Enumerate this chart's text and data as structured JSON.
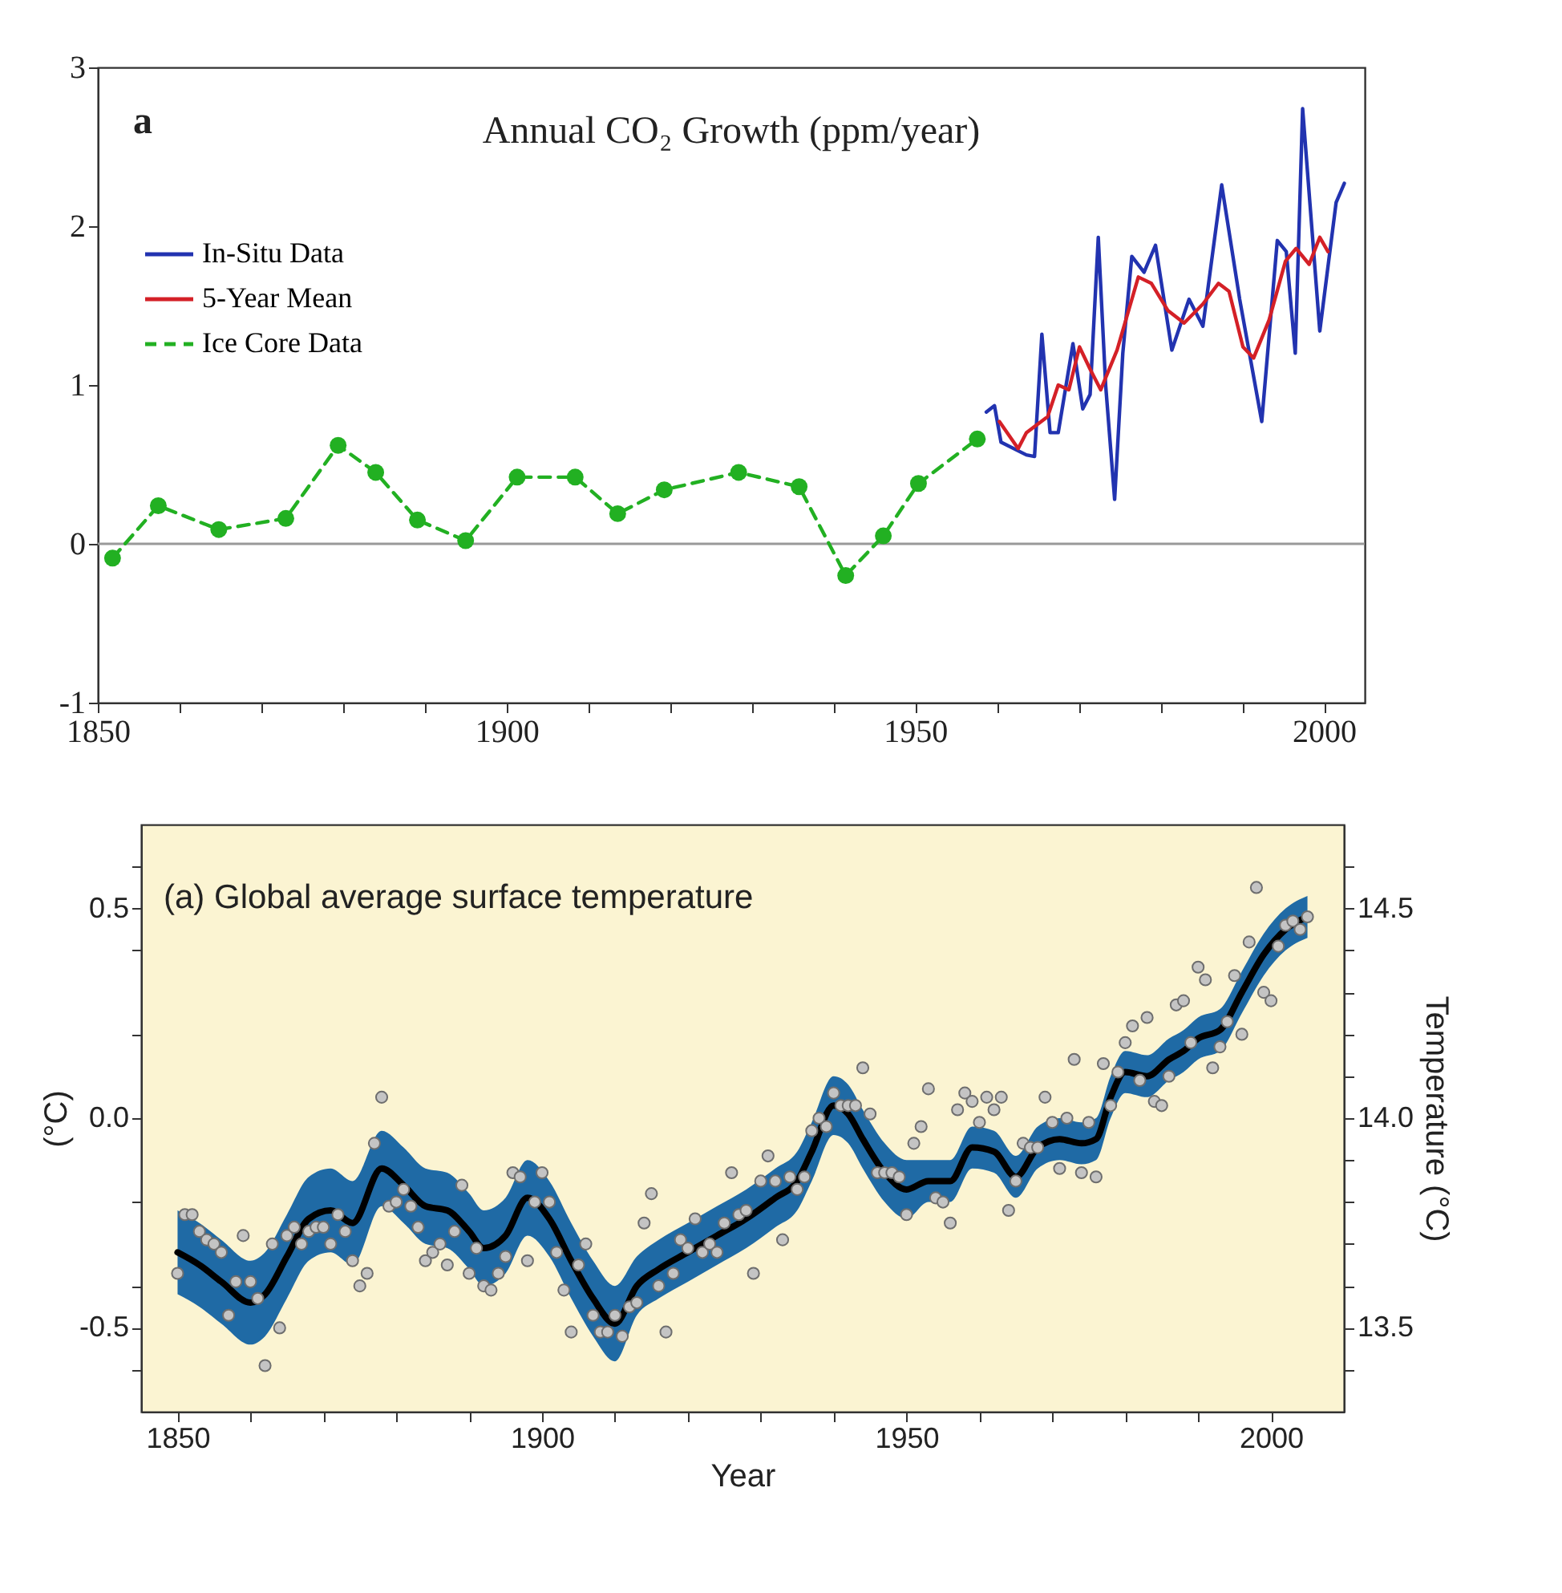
{
  "chart_data": [
    {
      "type": "line",
      "title": "Annual CO₂ Growth (ppm/year)",
      "annotations": [
        "a"
      ],
      "legend": "top left",
      "xlim": [
        1850,
        2005
      ],
      "xticks": [
        1850,
        {
          "value": 1860,
          "label": null
        },
        {
          "value": 1870,
          "label": null
        },
        {
          "value": 1880,
          "label": null
        },
        {
          "value": 1890,
          "label": null
        },
        1900,
        {
          "value": 1910,
          "label": null
        },
        {
          "value": 1920,
          "label": null
        },
        {
          "value": 1930,
          "label": null
        },
        {
          "value": 1940,
          "label": null
        },
        1950,
        {
          "value": 1960,
          "label": null
        },
        {
          "value": 1970,
          "label": null
        },
        {
          "value": 1980,
          "label": null
        },
        {
          "value": 1990,
          "label": null
        },
        2000
      ],
      "ylim": [
        -1,
        3
      ],
      "yticks": [
        -1,
        0,
        1,
        2,
        3
      ],
      "ref_lines": [
        {
          "axis": "y",
          "value": 0,
          "color": "#999999"
        }
      ],
      "series": [
        {
          "name": "In-Situ Data",
          "color": "#2233b0",
          "line_style": "solid",
          "marker": "none",
          "x": [
            1958.7,
            1959.7,
            1960.5,
            1963.6,
            1964.6,
            1965.5,
            1966.5,
            1967.5,
            1969.3,
            1970.5,
            1971.4,
            1972.4,
            1973.3,
            1974.4,
            1975.4,
            1976.5,
            1978,
            1979.4,
            1981.4,
            1983.5,
            1985.2,
            1987.5,
            1989.7,
            1992.4,
            1994.3,
            1995.4,
            1996.5,
            1997.4,
            1999.5,
            2001.5,
            2002.5
          ],
          "values": [
            0.83,
            0.87,
            0.64,
            0.56,
            0.55,
            1.32,
            0.7,
            0.7,
            1.26,
            0.85,
            0.94,
            1.93,
            1.0,
            0.28,
            1.2,
            1.81,
            1.71,
            1.88,
            1.22,
            1.54,
            1.37,
            2.26,
            1.54,
            0.77,
            1.91,
            1.84,
            1.2,
            2.74,
            1.34,
            2.15,
            2.27
          ]
        },
        {
          "name": "5-Year Mean",
          "color": "#d42027",
          "line_style": "solid",
          "marker": "none",
          "x": [
            1960.3,
            1962.6,
            1963.6,
            1966.2,
            1967.5,
            1968.8,
            1970.1,
            1971.4,
            1972.7,
            1974.7,
            1977.3,
            1978.9,
            1980.9,
            1982.9,
            1985.2,
            1987.1,
            1988.4,
            1990.1,
            1991.4,
            1993.3,
            1995.3,
            1996.6,
            1998.2,
            1999.5,
            2000.5
          ],
          "values": [
            0.77,
            0.6,
            0.7,
            0.8,
            1.0,
            0.97,
            1.24,
            1.1,
            0.97,
            1.22,
            1.68,
            1.64,
            1.47,
            1.39,
            1.51,
            1.64,
            1.59,
            1.24,
            1.17,
            1.41,
            1.78,
            1.86,
            1.76,
            1.93,
            1.84
          ]
        },
        {
          "name": "Ice Core Data",
          "color": "#22b022",
          "line_style": "dashed",
          "marker": "circle",
          "x": [
            1851.8,
            1857.4,
            1864.8,
            1873,
            1879.4,
            1884,
            1889.1,
            1895,
            1901.3,
            1908.4,
            1913.6,
            1919.3,
            1928.4,
            1935.8,
            1941.5,
            1946.1,
            1950.4,
            1957.6
          ],
          "values": [
            -0.09,
            0.24,
            0.09,
            0.16,
            0.62,
            0.45,
            0.15,
            0.02,
            0.42,
            0.42,
            0.19,
            0.34,
            0.45,
            0.36,
            -0.2,
            0.05,
            0.38,
            0.66
          ]
        }
      ]
    },
    {
      "type": "line",
      "title": "(a) Global average surface temperature",
      "xlabel": "Year",
      "ylabel": "(°C)",
      "y2label": "Temperature (°C)",
      "xlim": [
        1845,
        2010
      ],
      "xticks": [
        1850,
        {
          "value": 1860,
          "label": null
        },
        {
          "value": 1870,
          "label": null
        },
        {
          "value": 1880,
          "label": null
        },
        {
          "value": 1890,
          "label": null
        },
        1900,
        {
          "value": 1910,
          "label": null
        },
        {
          "value": 1920,
          "label": null
        },
        {
          "value": 1930,
          "label": null
        },
        {
          "value": 1940,
          "label": null
        },
        1950,
        {
          "value": 1960,
          "label": null
        },
        {
          "value": 1970,
          "label": null
        },
        {
          "value": 1980,
          "label": null
        },
        {
          "value": 1990,
          "label": null
        },
        2000
      ],
      "ylim": [
        -0.7,
        0.7
      ],
      "yticks": [
        {
          "value": 0.6,
          "label": null
        },
        0.5,
        {
          "value": 0.4,
          "label": null
        },
        {
          "value": 0.2,
          "label": null
        },
        {
          "value": 0,
          "label": "0.0"
        },
        {
          "value": -0.2,
          "label": null
        },
        {
          "value": -0.4,
          "label": null
        },
        -0.5,
        {
          "value": -0.6,
          "label": null
        }
      ],
      "y2lim": [
        13.3,
        14.7
      ],
      "y2ticks": [
        {
          "value": 13.4,
          "label": null
        },
        13.5,
        {
          "value": 13.6,
          "label": null
        },
        {
          "value": 13.7,
          "label": null
        },
        {
          "value": 13.8,
          "label": null
        },
        {
          "value": 13.9,
          "label": null
        },
        {
          "value": 14,
          "label": "14.0"
        },
        {
          "value": 14.1,
          "label": null
        },
        {
          "value": 14.2,
          "label": null
        },
        {
          "value": 14.3,
          "label": null
        },
        {
          "value": 14.4,
          "label": null
        },
        14.5,
        {
          "value": 14.6,
          "label": null
        }
      ],
      "series": [
        {
          "type": "scatter",
          "color": "#c4c4c4",
          "marker": "circle",
          "x": [
            1850,
            1851,
            1852,
            1853,
            1854,
            1855,
            1856,
            1857,
            1858,
            1859,
            1860,
            1861,
            1862,
            1863,
            1864,
            1865,
            1866,
            1867,
            1868,
            1869,
            1870,
            1871,
            1872,
            1873,
            1874,
            1875,
            1876,
            1877,
            1878,
            1879,
            1880,
            1881,
            1882,
            1883,
            1884,
            1885,
            1886,
            1887,
            1888,
            1889,
            1890,
            1891,
            1892,
            1893,
            1894,
            1895,
            1896,
            1897,
            1898,
            1899,
            1900,
            1901,
            1902,
            1903,
            1904,
            1905,
            1906,
            1907,
            1908,
            1909,
            1910,
            1911,
            1912,
            1913,
            1914,
            1915,
            1916,
            1917,
            1918,
            1919,
            1920,
            1921,
            1922,
            1923,
            1924,
            1925,
            1926,
            1927,
            1928,
            1929,
            1930,
            1931,
            1932,
            1933,
            1934,
            1935,
            1936,
            1937,
            1938,
            1939,
            1940,
            1941,
            1942,
            1943,
            1944,
            1945,
            1946,
            1947,
            1948,
            1949,
            1950,
            1951,
            1952,
            1953,
            1954,
            1955,
            1956,
            1957,
            1958,
            1959,
            1960,
            1961,
            1962,
            1963,
            1964,
            1965,
            1966,
            1967,
            1968,
            1969,
            1970,
            1971,
            1972,
            1973,
            1974,
            1975,
            1976,
            1977,
            1978,
            1979,
            1980,
            1981,
            1982,
            1983,
            1984,
            1985,
            1986,
            1987,
            1988,
            1989,
            1990,
            1991,
            1992,
            1993,
            1994,
            1995,
            1996,
            1997,
            1998,
            1999,
            2000,
            2001,
            2002,
            2003,
            2004,
            2005
          ],
          "values": [
            -0.37,
            -0.23,
            -0.23,
            -0.27,
            -0.29,
            -0.3,
            -0.32,
            -0.47,
            -0.39,
            -0.28,
            -0.39,
            -0.43,
            -0.59,
            -0.3,
            -0.5,
            -0.28,
            -0.26,
            -0.3,
            -0.27,
            -0.26,
            -0.26,
            -0.3,
            -0.23,
            -0.27,
            -0.34,
            -0.4,
            -0.37,
            -0.06,
            0.05,
            -0.21,
            -0.2,
            -0.17,
            -0.21,
            -0.26,
            -0.34,
            -0.32,
            -0.3,
            -0.35,
            -0.27,
            -0.16,
            -0.37,
            -0.31,
            -0.4,
            -0.41,
            -0.37,
            -0.33,
            -0.13,
            -0.14,
            -0.34,
            -0.2,
            -0.13,
            -0.2,
            -0.32,
            -0.41,
            -0.51,
            -0.35,
            -0.3,
            -0.47,
            -0.51,
            -0.51,
            -0.47,
            -0.52,
            -0.45,
            -0.44,
            -0.25,
            -0.18,
            -0.4,
            -0.51,
            -0.37,
            -0.29,
            -0.31,
            -0.24,
            -0.32,
            -0.3,
            -0.32,
            -0.25,
            -0.13,
            -0.23,
            -0.22,
            -0.37,
            -0.15,
            -0.09,
            -0.15,
            -0.29,
            -0.14,
            -0.17,
            -0.14,
            -0.03,
            0.0,
            -0.02,
            0.06,
            0.03,
            0.03,
            0.03,
            0.12,
            0.01,
            -0.13,
            -0.13,
            -0.13,
            -0.14,
            -0.23,
            -0.06,
            -0.02,
            0.07,
            -0.19,
            -0.2,
            -0.25,
            0.02,
            0.06,
            0.04,
            -0.01,
            0.05,
            0.02,
            0.05,
            -0.22,
            -0.15,
            -0.06,
            -0.07,
            -0.07,
            0.05,
            -0.01,
            -0.12,
            0.0,
            0.14,
            -0.13,
            -0.01,
            -0.14,
            0.13,
            0.03,
            0.11,
            0.18,
            0.22,
            0.09,
            0.24,
            0.04,
            0.03,
            0.1,
            0.27,
            0.28,
            0.18,
            0.36,
            0.33,
            0.12,
            0.17,
            0.23,
            0.34,
            0.2,
            0.42,
            0.55,
            0.3,
            0.28,
            0.41,
            0.46,
            0.47,
            0.45,
            0.48
          ]
        },
        {
          "color": "#000000",
          "line_style": "solid",
          "marker": "none",
          "x": [
            1850,
            1853,
            1856,
            1860,
            1862,
            1865,
            1868,
            1871,
            1874,
            1878,
            1881,
            1884,
            1887,
            1890,
            1892,
            1895,
            1898,
            1901,
            1904,
            1907,
            1910,
            1913,
            1916,
            1920,
            1924,
            1928,
            1932,
            1935,
            1937,
            1940,
            1942,
            1944,
            1947,
            1950,
            1953,
            1956,
            1959,
            1962,
            1965,
            1968,
            1971,
            1974,
            1976,
            1978,
            1980,
            1983,
            1986,
            1988,
            1990,
            1993,
            1996,
            1999,
            2002,
            2005
          ],
          "values": [
            -0.32,
            -0.35,
            -0.39,
            -0.44,
            -0.42,
            -0.33,
            -0.24,
            -0.22,
            -0.25,
            -0.12,
            -0.16,
            -0.21,
            -0.22,
            -0.27,
            -0.31,
            -0.28,
            -0.19,
            -0.24,
            -0.34,
            -0.43,
            -0.49,
            -0.4,
            -0.36,
            -0.32,
            -0.28,
            -0.24,
            -0.19,
            -0.15,
            -0.08,
            0.03,
            0.01,
            -0.05,
            -0.13,
            -0.17,
            -0.15,
            -0.15,
            -0.07,
            -0.08,
            -0.14,
            -0.07,
            -0.05,
            -0.06,
            -0.05,
            0.05,
            0.11,
            0.1,
            0.14,
            0.16,
            0.19,
            0.21,
            0.3,
            0.39,
            0.45,
            0.48
          ],
          "lower": [
            -0.42,
            -0.45,
            -0.49,
            -0.54,
            -0.52,
            -0.43,
            -0.34,
            -0.32,
            -0.35,
            -0.21,
            -0.25,
            -0.3,
            -0.31,
            -0.36,
            -0.4,
            -0.37,
            -0.28,
            -0.33,
            -0.43,
            -0.52,
            -0.58,
            -0.47,
            -0.43,
            -0.39,
            -0.35,
            -0.31,
            -0.26,
            -0.22,
            -0.15,
            -0.04,
            -0.06,
            -0.12,
            -0.2,
            -0.24,
            -0.2,
            -0.2,
            -0.12,
            -0.13,
            -0.19,
            -0.12,
            -0.1,
            -0.11,
            -0.1,
            0.0,
            0.06,
            0.05,
            0.09,
            0.11,
            0.14,
            0.16,
            0.25,
            0.34,
            0.4,
            0.43
          ],
          "upper": [
            -0.22,
            -0.25,
            -0.29,
            -0.34,
            -0.32,
            -0.23,
            -0.14,
            -0.12,
            -0.15,
            -0.03,
            -0.07,
            -0.12,
            -0.13,
            -0.18,
            -0.22,
            -0.19,
            -0.1,
            -0.15,
            -0.25,
            -0.34,
            -0.4,
            -0.33,
            -0.29,
            -0.25,
            -0.21,
            -0.17,
            -0.12,
            -0.08,
            -0.01,
            0.1,
            0.08,
            0.02,
            -0.06,
            -0.1,
            -0.1,
            -0.1,
            -0.02,
            -0.03,
            -0.09,
            -0.02,
            0.0,
            -0.01,
            0.0,
            0.1,
            0.16,
            0.15,
            0.19,
            0.21,
            0.24,
            0.26,
            0.35,
            0.44,
            0.5,
            0.53
          ]
        }
      ]
    }
  ]
}
